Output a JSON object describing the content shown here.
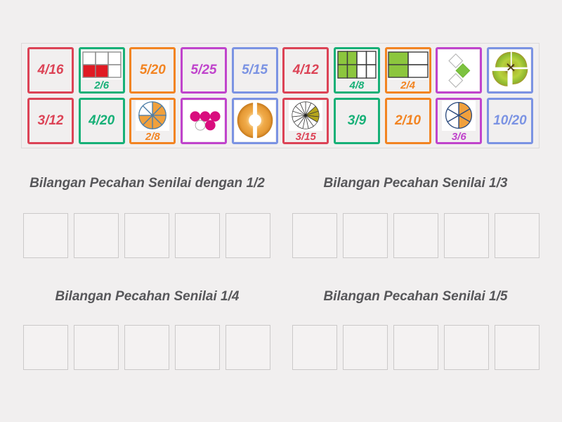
{
  "palette": {
    "background": "#f1efef",
    "group_title_text": "#57575a",
    "tile_colors": {
      "red": "#dc4356",
      "green": "#17b077",
      "orange": "#f28422",
      "purple": "#c044cc",
      "blue": "#7b93e3"
    },
    "grid_red_fill": "#e01b24",
    "grid_green_fill": "#8cc63e",
    "pie_orange_fill": "#f0a03c",
    "pie_olive_fill": "#b5a51d",
    "circle_magenta_fill": "#d90d7e",
    "diamond_green_fill": "#7cc23f"
  },
  "tile_bank": {
    "rows": [
      [
        {
          "type": "text",
          "label": "4/16",
          "color": "red"
        },
        {
          "type": "image",
          "icon": "fraction-grid-2of6",
          "label": "2/6",
          "color": "green"
        },
        {
          "type": "text",
          "label": "5/20",
          "color": "orange"
        },
        {
          "type": "text",
          "label": "5/25",
          "color": "purple"
        },
        {
          "type": "text",
          "label": "5/15",
          "color": "blue"
        },
        {
          "type": "text",
          "label": "4/12",
          "color": "red"
        },
        {
          "type": "image",
          "icon": "fraction-grid-4of8",
          "label": "4/8",
          "color": "green"
        },
        {
          "type": "image",
          "icon": "fraction-grid-2of4",
          "label": "2/4",
          "color": "orange"
        },
        {
          "type": "image",
          "icon": "fraction-diamonds-1of3",
          "label": "",
          "color": "purple"
        },
        {
          "type": "image",
          "icon": "apple-quarters",
          "label": "",
          "color": "blue"
        }
      ],
      [
        {
          "type": "text",
          "label": "3/12",
          "color": "red"
        },
        {
          "type": "text",
          "label": "4/20",
          "color": "green"
        },
        {
          "type": "image",
          "icon": "fraction-pie-2of8",
          "label": "2/8",
          "color": "orange"
        },
        {
          "type": "image",
          "icon": "fraction-circles-1of5",
          "label": "",
          "color": "purple"
        },
        {
          "type": "image",
          "icon": "donut-halves",
          "label": "",
          "color": "blue"
        },
        {
          "type": "image",
          "icon": "fraction-pie-3of15",
          "label": "3/15",
          "color": "red"
        },
        {
          "type": "text",
          "label": "3/9",
          "color": "green"
        },
        {
          "type": "text",
          "label": "2/10",
          "color": "orange"
        },
        {
          "type": "image",
          "icon": "fraction-pie-3of6",
          "label": "3/6",
          "color": "purple"
        },
        {
          "type": "text",
          "label": "10/20",
          "color": "blue"
        }
      ]
    ]
  },
  "groups": [
    {
      "title": "Bilangan Pecahan Senilai dengan 1/2",
      "slots": 5
    },
    {
      "title": "Bilangan Pecahan Senilai 1/3",
      "slots": 5
    },
    {
      "title": "Bilangan Pecahan Senilai 1/4",
      "slots": 5
    },
    {
      "title": "Bilangan Pecahan Senilai 1/5",
      "slots": 5
    }
  ]
}
